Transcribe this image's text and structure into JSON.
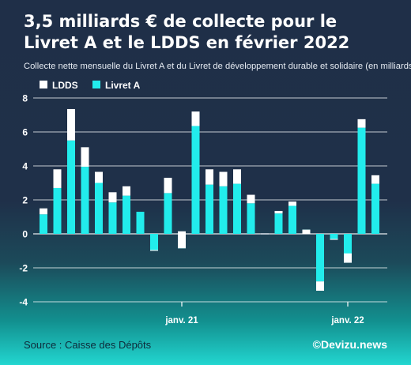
{
  "title": "3,5 milliards € de collecte pour le Livret A et le LDDS en février 2022",
  "subtitle": "Collecte nette mensuelle du Livret A et du Livret de développement durable et solidaire (en milliards €)",
  "source": "Source : Caisse des Dépôts",
  "credit": "©Devizu.news",
  "colors": {
    "livret_a": "#22ecec",
    "ldds": "#ffffff",
    "grid": "#ffffff",
    "axis_text": "#ffffff"
  },
  "chart_data": {
    "type": "bar",
    "stacked": true,
    "legend": [
      "LDDS",
      "Livret A"
    ],
    "legend_position": "top-left",
    "ylim": [
      -4,
      8
    ],
    "yticks": [
      -4,
      -2,
      0,
      2,
      4,
      6,
      8
    ],
    "grid": true,
    "x_tick_labels": [
      {
        "label": "janv. 21",
        "index": 10
      },
      {
        "label": "janv. 22",
        "index": 22
      }
    ],
    "series": [
      {
        "name": "Livret A",
        "values": [
          1.15,
          2.7,
          5.5,
          3.95,
          3.0,
          1.85,
          2.25,
          1.3,
          -0.95,
          2.4,
          -0.85,
          6.35,
          2.9,
          2.8,
          2.95,
          1.8,
          0.0,
          1.2,
          1.65,
          0.25,
          -2.8,
          -0.3,
          -1.7,
          6.25,
          2.95
        ]
      },
      {
        "name": "LDDS",
        "values": [
          0.35,
          1.1,
          1.85,
          1.15,
          0.65,
          0.6,
          0.55,
          0.0,
          -0.05,
          0.9,
          1.0,
          0.85,
          0.9,
          0.85,
          0.85,
          0.5,
          0.0,
          0.15,
          0.25,
          -0.25,
          -0.55,
          -0.05,
          0.55,
          0.5,
          0.5
        ]
      }
    ]
  }
}
